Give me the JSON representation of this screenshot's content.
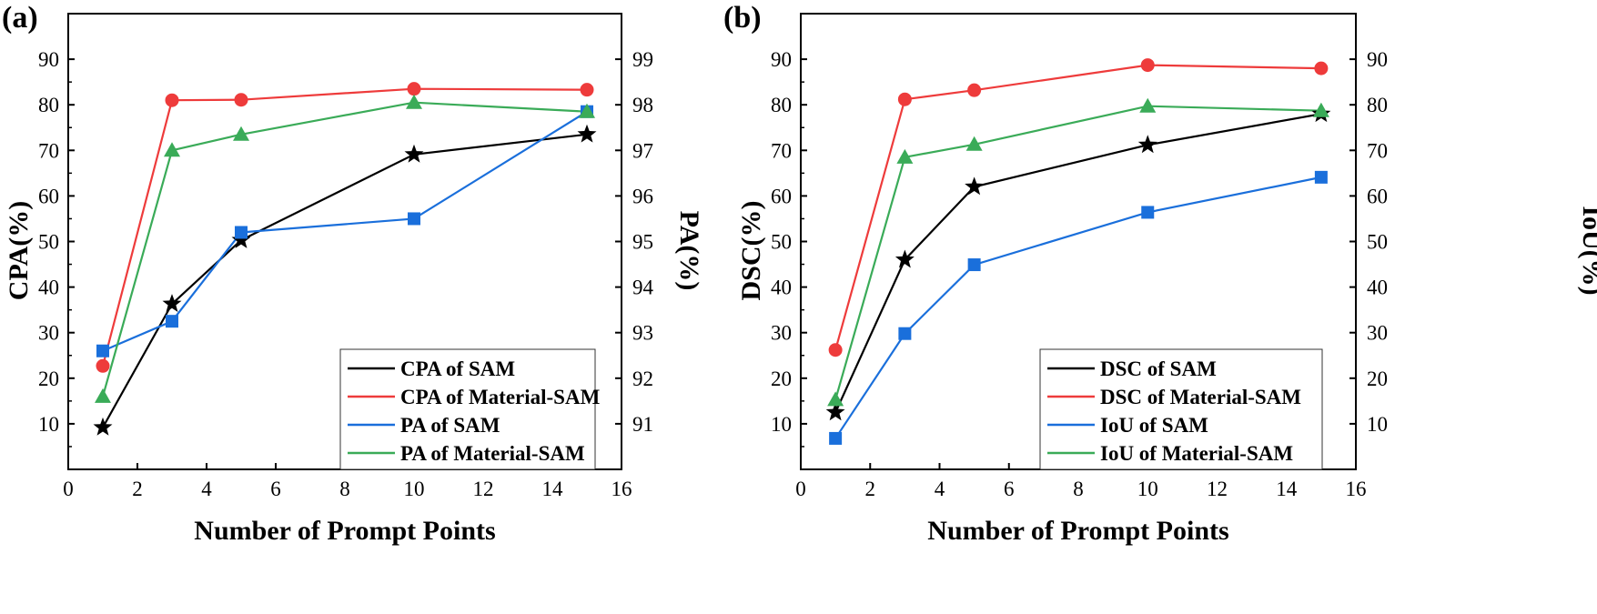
{
  "colors": {
    "sam_black": "#000000",
    "material_red": "#ee3b3b",
    "sam_blue": "#1a6fdb",
    "material_green": "#3aab58"
  },
  "chart_data": [
    {
      "type": "line",
      "panel_label": "(a)",
      "xlabel": "Number of Prompt Points",
      "ylabel_left": "CPA(%)",
      "ylabel_right": "PA(%)",
      "xlim": [
        0,
        16
      ],
      "ylim_left": [
        0,
        100
      ],
      "ylim_right": [
        90,
        100
      ],
      "x_ticks": [
        "0",
        "2",
        "4",
        "6",
        "8",
        "10",
        "12",
        "14",
        "16"
      ],
      "y_left_ticks": [
        "10",
        "20",
        "30",
        "40",
        "50",
        "60",
        "70",
        "80",
        "90"
      ],
      "y_right_ticks": [
        "91",
        "92",
        "93",
        "94",
        "95",
        "96",
        "97",
        "98",
        "99"
      ],
      "legend_position": "bottom-right",
      "series": [
        {
          "name": "CPA of SAM",
          "axis": "left",
          "color": "#000000",
          "marker": "star",
          "x": [
            1,
            3,
            5,
            10,
            15
          ],
          "y": [
            9.2,
            36.3,
            50.3,
            69.1,
            73.5
          ]
        },
        {
          "name": "CPA of Material-SAM",
          "axis": "left",
          "color": "#ee3b3b",
          "marker": "circle",
          "x": [
            1,
            3,
            5,
            10,
            15
          ],
          "y": [
            22.7,
            81.0,
            81.1,
            83.5,
            83.3
          ]
        },
        {
          "name": "PA of SAM",
          "axis": "right",
          "color": "#1a6fdb",
          "marker": "square",
          "x": [
            1,
            3,
            5,
            10,
            15
          ],
          "y": [
            92.6,
            93.25,
            95.2,
            95.5,
            97.85
          ]
        },
        {
          "name": "PA of Material-SAM",
          "axis": "right",
          "color": "#3aab58",
          "marker": "triangle",
          "x": [
            1,
            3,
            5,
            10,
            15
          ],
          "y": [
            91.6,
            97.0,
            97.35,
            98.05,
            97.85
          ]
        }
      ]
    },
    {
      "type": "line",
      "panel_label": "(b)",
      "xlabel": "Number of Prompt Points",
      "ylabel_left": "DSC(%)",
      "ylabel_right": "IoU(%)",
      "xlim": [
        0,
        16
      ],
      "ylim_left": [
        0,
        100
      ],
      "ylim_right": [
        0,
        100
      ],
      "x_ticks": [
        "0",
        "2",
        "4",
        "6",
        "8",
        "10",
        "12",
        "14",
        "16"
      ],
      "y_left_ticks": [
        "10",
        "20",
        "30",
        "40",
        "50",
        "60",
        "70",
        "80",
        "90"
      ],
      "y_right_ticks": [
        "10",
        "20",
        "30",
        "40",
        "50",
        "60",
        "70",
        "80",
        "90"
      ],
      "legend_position": "bottom-right",
      "series": [
        {
          "name": "DSC of SAM",
          "axis": "left",
          "color": "#000000",
          "marker": "star",
          "x": [
            1,
            3,
            5,
            10,
            15
          ],
          "y": [
            12.5,
            46.0,
            62.0,
            71.2,
            78.0
          ]
        },
        {
          "name": "DSC of Material-SAM",
          "axis": "left",
          "color": "#ee3b3b",
          "marker": "circle",
          "x": [
            1,
            3,
            5,
            10,
            15
          ],
          "y": [
            26.2,
            81.2,
            83.2,
            88.7,
            88.0
          ]
        },
        {
          "name": "IoU of SAM",
          "axis": "right",
          "color": "#1a6fdb",
          "marker": "square",
          "x": [
            1,
            3,
            5,
            10,
            15
          ],
          "y": [
            6.8,
            29.8,
            44.9,
            56.4,
            64.1
          ]
        },
        {
          "name": "IoU of Material-SAM",
          "axis": "right",
          "color": "#3aab58",
          "marker": "triangle",
          "x": [
            1,
            3,
            5,
            10,
            15
          ],
          "y": [
            15.3,
            68.5,
            71.3,
            79.7,
            78.7
          ]
        }
      ]
    }
  ]
}
